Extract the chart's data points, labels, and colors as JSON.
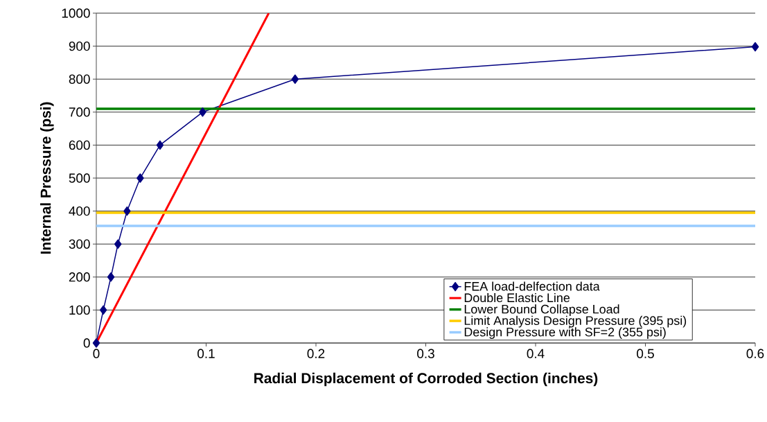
{
  "chart_data": {
    "type": "line",
    "xlabel": "Radial Displacement of Corroded Section (inches)",
    "ylabel": "Internal Pressure (psi)",
    "xlim": [
      0,
      0.6
    ],
    "ylim": [
      0,
      1000
    ],
    "xticks": [
      0,
      0.1,
      0.2,
      0.3,
      0.4,
      0.5,
      0.6
    ],
    "yticks": [
      0,
      100,
      200,
      300,
      400,
      500,
      600,
      700,
      800,
      900,
      1000
    ],
    "grid": "y",
    "legend": "bottom right",
    "series": [
      {
        "name": "FEA load-delfection data",
        "color": "#000080",
        "marker": "diamond",
        "x": [
          0,
          0.0064,
          0.0133,
          0.0197,
          0.028,
          0.04,
          0.058,
          0.0968,
          0.181,
          0.6
        ],
        "values": [
          0,
          100,
          200,
          300,
          400,
          500,
          600,
          700,
          800,
          898
        ]
      },
      {
        "name": "Double Elastic Line",
        "color": "#ff0000",
        "marker": "none",
        "x": [
          0,
          0.157
        ],
        "values": [
          0,
          1000
        ]
      }
    ],
    "ref_lines": [
      {
        "axis": "y",
        "value": 710,
        "label": "Lower Bound Collapse Load",
        "color": "#008000"
      },
      {
        "axis": "y",
        "value": 395,
        "label": "Limit Analysis Design Pressure (395 psi)",
        "color": "#ffcc00"
      },
      {
        "axis": "y",
        "value": 355,
        "label": "Design Pressure with SF=2 (355 psi)",
        "color": "#99ccff"
      }
    ]
  }
}
